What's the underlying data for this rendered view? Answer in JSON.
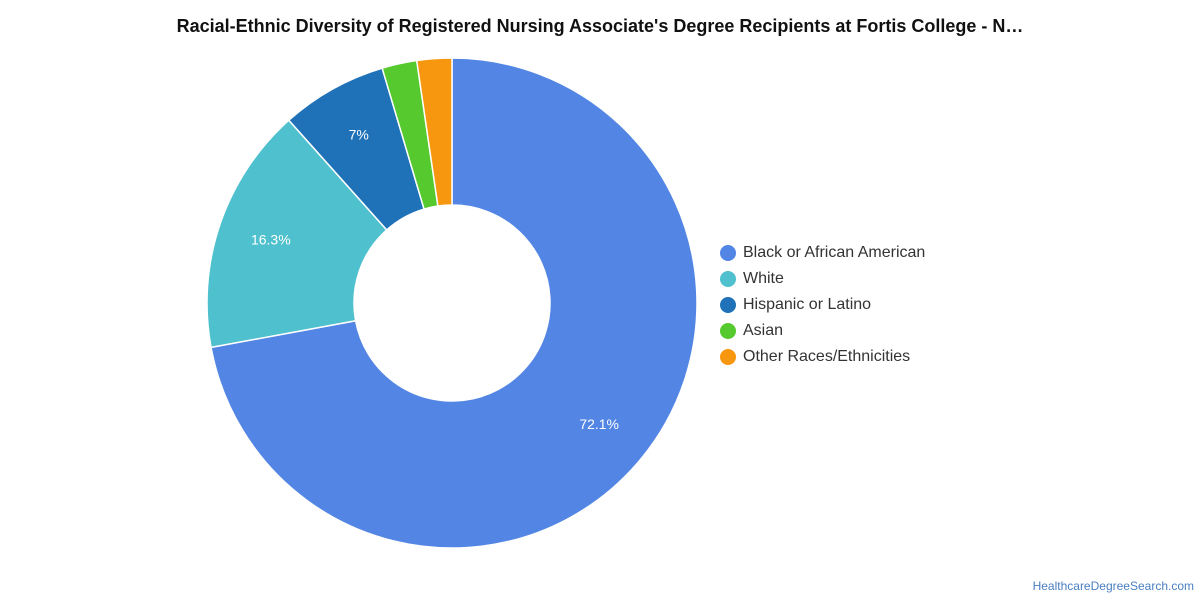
{
  "title": "Racial-Ethnic Diversity of Registered Nursing Associate's Degree Recipients at Fortis College - N…",
  "source": "HealthcareDegreeSearch.com",
  "chart_data": {
    "type": "pie",
    "donut": true,
    "title": "Racial-Ethnic Diversity of Registered Nursing Associate's Degree Recipients at Fortis College - N…",
    "legend_position": "right",
    "slices": [
      {
        "label": "Black or African American",
        "value": 72.1,
        "display": "72.1%",
        "color": "#5386e4"
      },
      {
        "label": "White",
        "value": 16.3,
        "display": "16.3%",
        "color": "#4fc0cd"
      },
      {
        "label": "Hispanic or Latino",
        "value": 7.0,
        "display": "7%",
        "color": "#1f71b8"
      },
      {
        "label": "Asian",
        "value": 2.3,
        "display": "",
        "color": "#55c92e"
      },
      {
        "label": "Other Races/Ethnicities",
        "value": 2.3,
        "display": "",
        "color": "#f7960f"
      }
    ]
  }
}
